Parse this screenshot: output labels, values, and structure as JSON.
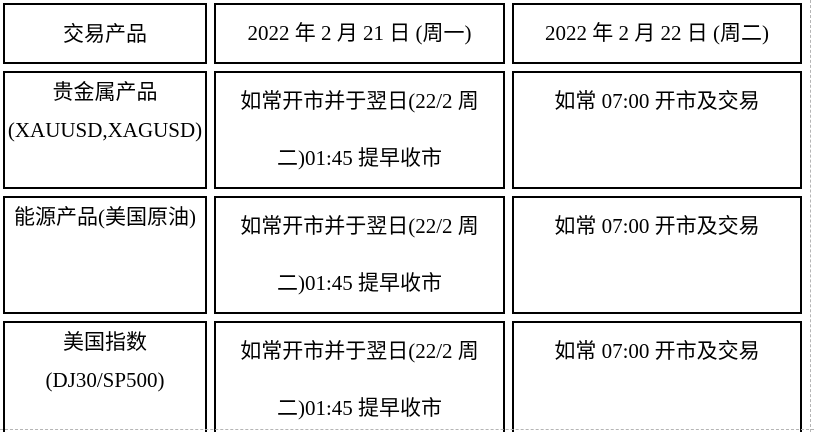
{
  "page": {
    "background": "#ffffff",
    "cell_border_color": "#000000",
    "text_color": "#000000",
    "boundary_line_color": "#b5b5b5"
  },
  "table": {
    "header": {
      "product": "交易产品",
      "day1": "2022 年 2 月 21 日 (周一)",
      "day2": "2022 年 2 月 22 日 (周二)"
    },
    "rows": [
      {
        "product_line1": "贵金属产品",
        "product_line2": "(XAUUSD,XAGUSD)",
        "day1_line1": "如常开市并于翌日(22/2 周",
        "day1_line2": "二)01:45 提早收市",
        "day2_line1": "如常 07:00 开市及交易"
      },
      {
        "product_line1": "能源产品(美国原油)",
        "product_line2": "",
        "day1_line1": "如常开市并于翌日(22/2 周",
        "day1_line2": "二)01:45 提早收市",
        "day2_line1": "如常 07:00 开市及交易"
      },
      {
        "product_line1": "美国指数",
        "product_line2": "(DJ30/SP500)",
        "day1_line1": "如常开市并于翌日(22/2 周",
        "day1_line2": "二)01:45 提早收市",
        "day2_line1": "如常 07:00 开市及交易"
      }
    ]
  }
}
